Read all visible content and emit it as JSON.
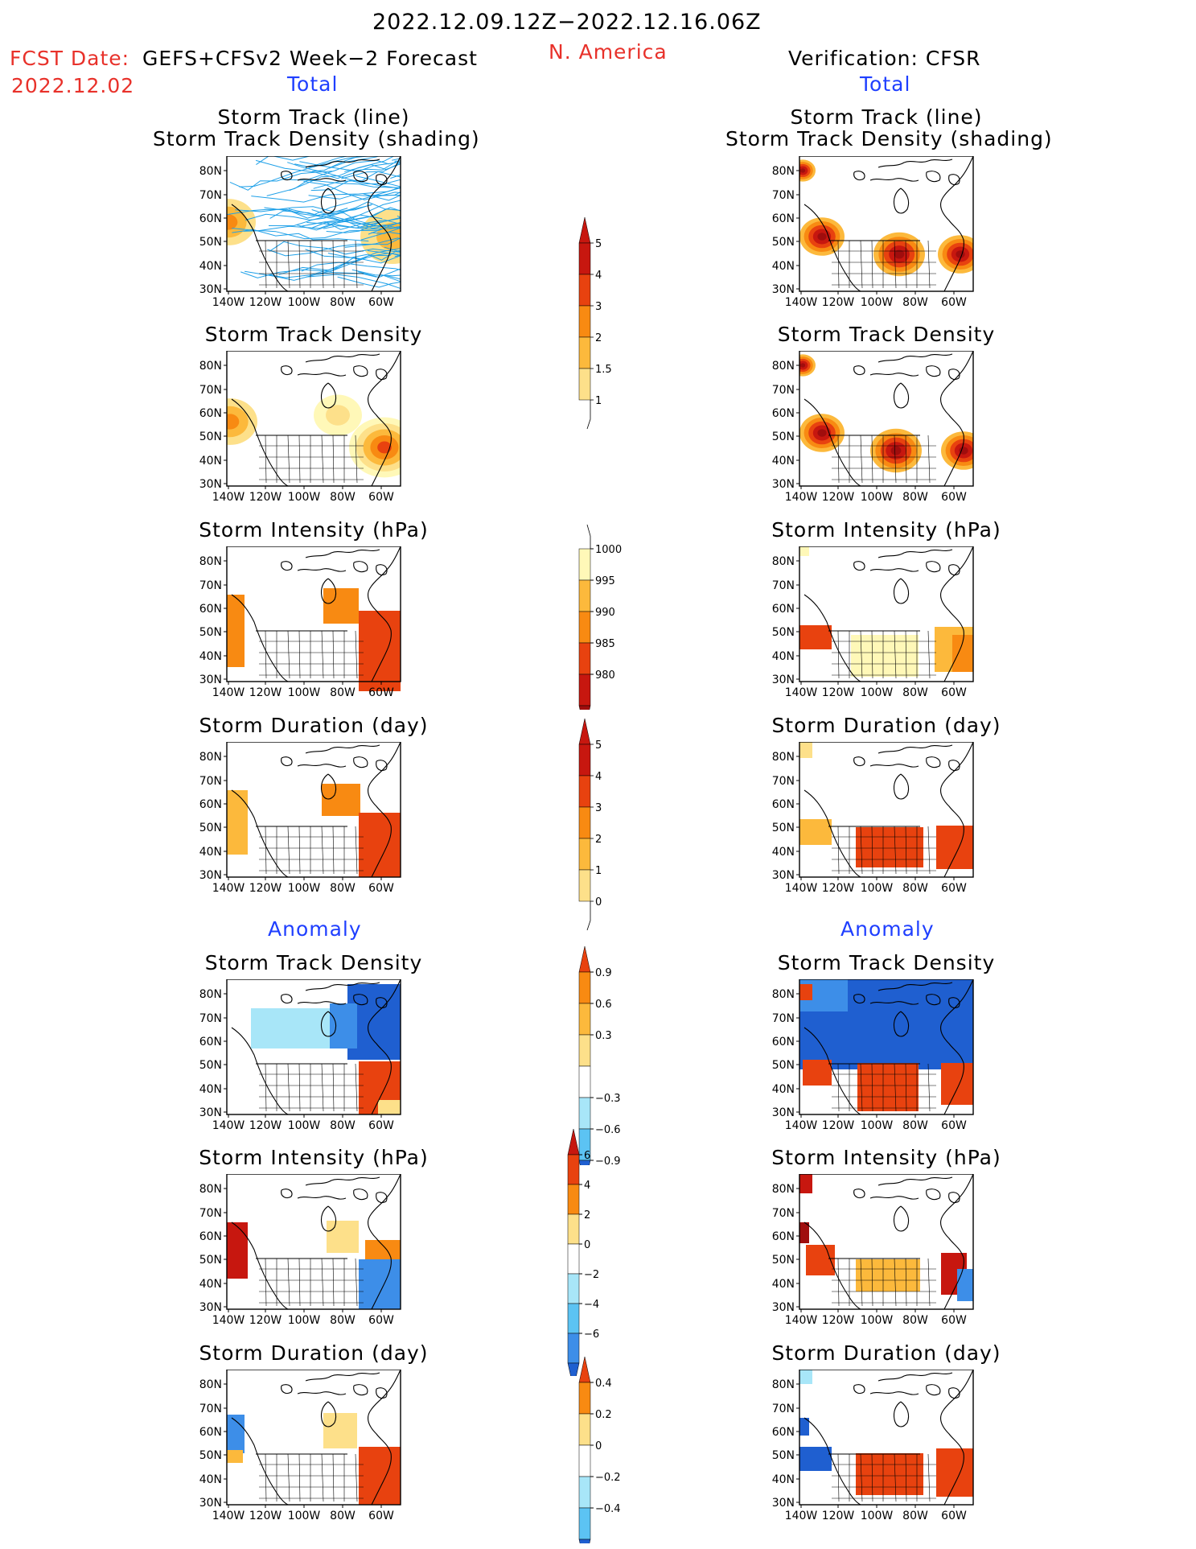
{
  "header": {
    "period": "2022.12.09.12Z−2022.12.16.06Z",
    "region": "N. America",
    "fcst_label": "FCST Date:",
    "fcst_model": "GEFS+CFSv2 Week−2 Forecast",
    "fcst_date": "2022.12.02",
    "verification": "Verification: CFSR"
  },
  "sections": {
    "total": "Total",
    "anomaly": "Anomaly"
  },
  "lat_labels": [
    "80N",
    "70N",
    "60N",
    "50N",
    "40N",
    "30N"
  ],
  "lon_labels": [
    "140W",
    "120W",
    "100W",
    "80W",
    "60W"
  ],
  "panels": {
    "track_line": [
      "Storm Track (line)",
      "Storm Track Density (shading)"
    ],
    "density": "Storm Track Density",
    "intensity": "Storm Intensity (hPa)",
    "duration": "Storm Duration (day)"
  },
  "colorbars": {
    "density_total": {
      "labels": [
        "1",
        "1.5",
        "2",
        "3",
        "4",
        "5"
      ],
      "colors": [
        "#fff8b8",
        "#fde08a",
        "#fcb93c",
        "#f88a12",
        "#e8420f",
        "#c7170f"
      ]
    },
    "intensity_total": {
      "labels": [
        "1000",
        "995",
        "990",
        "985",
        "980"
      ],
      "colors": [
        "#fff8b8",
        "#fcb93c",
        "#f88a12",
        "#e8420f",
        "#c7170f",
        "#a00d0d"
      ]
    },
    "duration_total": {
      "labels": [
        "0",
        "1",
        "2",
        "3",
        "4",
        "5"
      ],
      "colors": [
        "#fff8b8",
        "#fde08a",
        "#fcb93c",
        "#f88a12",
        "#e8420f",
        "#c7170f"
      ]
    },
    "density_anom": {
      "labels": [
        "0.9",
        "0.6",
        "0.3",
        "−0.3",
        "−0.6",
        "−0.9"
      ]
    },
    "intensity_anom": {
      "labels": [
        "6",
        "4",
        "2",
        "0",
        "−2",
        "−4",
        "−6"
      ]
    },
    "duration_anom": {
      "labels": [
        "0.4",
        "0.2",
        "0",
        "−0.2",
        "−0.4"
      ]
    }
  },
  "colors": {
    "accent_red": "#e8312a",
    "accent_blue": "#1f3fff",
    "track_line": "#1ea0e8"
  }
}
